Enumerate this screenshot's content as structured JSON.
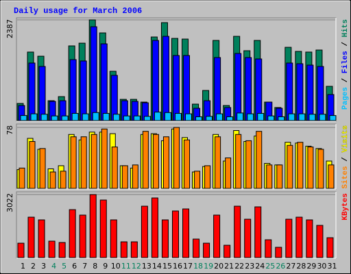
{
  "title": "Daily usage for March 2006",
  "legend_separator": " / ",
  "chart_data": [
    {
      "type": "bar",
      "ylim": [
        0,
        2387
      ],
      "yticks": [
        2387
      ],
      "series": [
        {
          "name": "Hits",
          "color": "#00805c",
          "values": [
            406,
            1624,
            1526,
            471,
            568,
            1770,
            1835,
            2387,
            2078,
            1169,
            503,
            503,
            438,
            1981,
            2322,
            1948,
            1932,
            390,
            714,
            1900,
            357,
            1997,
            1656,
            1900,
            438,
            309,
            1737,
            1640,
            1624,
            1672,
            812
          ]
        },
        {
          "name": "Files",
          "color": "#0000ff",
          "values": [
            357,
            1364,
            1283,
            455,
            471,
            1445,
            1413,
            2225,
            1819,
            1072,
            471,
            455,
            422,
            1900,
            1997,
            1543,
            1543,
            292,
            471,
            1494,
            309,
            1591,
            1494,
            1461,
            438,
            292,
            1364,
            1348,
            1315,
            1283,
            617
          ]
        },
        {
          "name": "Pages",
          "color": "#00c0ff",
          "values": [
            120,
            160,
            150,
            110,
            110,
            170,
            160,
            190,
            170,
            150,
            110,
            110,
            100,
            200,
            190,
            170,
            160,
            90,
            100,
            160,
            90,
            180,
            160,
            170,
            110,
            90,
            160,
            160,
            150,
            150,
            120
          ]
        }
      ]
    },
    {
      "type": "bar",
      "ylim": [
        0,
        78
      ],
      "yticks": [
        78
      ],
      "series": [
        {
          "name": "Visits",
          "color": "#ffff00",
          "values": [
            24,
            64,
            50,
            25,
            29,
            69,
            62,
            72,
            72,
            70,
            29,
            26,
            69,
            70,
            61,
            76,
            65,
            21,
            28,
            69,
            35,
            74,
            60,
            67,
            32,
            30,
            59,
            58,
            54,
            51,
            35
          ]
        },
        {
          "name": "Sites",
          "color": "#ff8000",
          "values": [
            26,
            60,
            51,
            21,
            22,
            66,
            66,
            69,
            76,
            53,
            29,
            30,
            73,
            69,
            66,
            78,
            62,
            22,
            29,
            66,
            39,
            69,
            61,
            73,
            30,
            30,
            55,
            59,
            53,
            50,
            30
          ]
        }
      ]
    },
    {
      "type": "bar",
      "ylim": [
        0,
        3022
      ],
      "yticks": [
        3022
      ],
      "categories": [
        "1",
        "2",
        "3",
        "4",
        "5",
        "6",
        "7",
        "8",
        "9",
        "10",
        "11",
        "12",
        "13",
        "14",
        "15",
        "16",
        "17",
        "18",
        "19",
        "20",
        "21",
        "22",
        "23",
        "24",
        "25",
        "26",
        "27",
        "28",
        "29",
        "30",
        "31"
      ],
      "category_colors": [
        "#000000",
        "#000000",
        "#000000",
        "#00805c",
        "#00805c",
        "#000000",
        "#000000",
        "#000000",
        "#000000",
        "#000000",
        "#00805c",
        "#00805c",
        "#000000",
        "#000000",
        "#000000",
        "#000000",
        "#000000",
        "#00805c",
        "#00805c",
        "#000000",
        "#000000",
        "#000000",
        "#000000",
        "#000000",
        "#00805c",
        "#00805c",
        "#000000",
        "#000000",
        "#000000",
        "#000000",
        "#000000"
      ],
      "series": [
        {
          "name": "KBytes",
          "color": "#ff0000",
          "values": [
            690,
            1938,
            1807,
            788,
            723,
            2299,
            2037,
            3022,
            2759,
            1807,
            755,
            755,
            2464,
            2858,
            1807,
            2234,
            2332,
            887,
            690,
            2037,
            591,
            2464,
            1839,
            2431,
            854,
            493,
            1839,
            1938,
            1807,
            1544,
            953
          ]
        }
      ]
    }
  ]
}
